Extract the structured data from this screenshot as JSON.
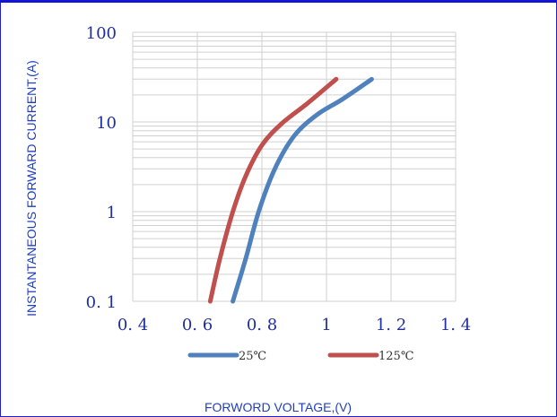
{
  "chart_data": {
    "type": "line",
    "title": "",
    "xlabel": "FORWORD VOLTAGE,(V)",
    "ylabel": "INSTANTANEOUS FORWARD CURRENT,(A)",
    "xlim": [
      0.4,
      1.4
    ],
    "ylim": [
      0.1,
      100
    ],
    "yscale": "log",
    "grid": true,
    "legend_position": "bottom",
    "x_ticks": [
      "0.4",
      "0.6",
      "0.8",
      "1",
      "1.2",
      "1.4"
    ],
    "y_ticks": [
      "0.1",
      "1",
      "10",
      "100"
    ],
    "series": [
      {
        "name": "25℃",
        "color": "#4f81bd",
        "points": [
          [
            0.71,
            0.1
          ],
          [
            0.75,
            0.3
          ],
          [
            0.79,
            1.0
          ],
          [
            0.84,
            3.0
          ],
          [
            0.9,
            7.0
          ],
          [
            0.97,
            12.0
          ],
          [
            1.05,
            18.0
          ],
          [
            1.14,
            30.0
          ]
        ]
      },
      {
        "name": "125℃",
        "color": "#c0504d",
        "points": [
          [
            0.64,
            0.1
          ],
          [
            0.67,
            0.3
          ],
          [
            0.71,
            1.0
          ],
          [
            0.75,
            2.5
          ],
          [
            0.8,
            5.5
          ],
          [
            0.86,
            9.5
          ],
          [
            0.94,
            16.0
          ],
          [
            1.03,
            30.0
          ]
        ]
      }
    ]
  }
}
